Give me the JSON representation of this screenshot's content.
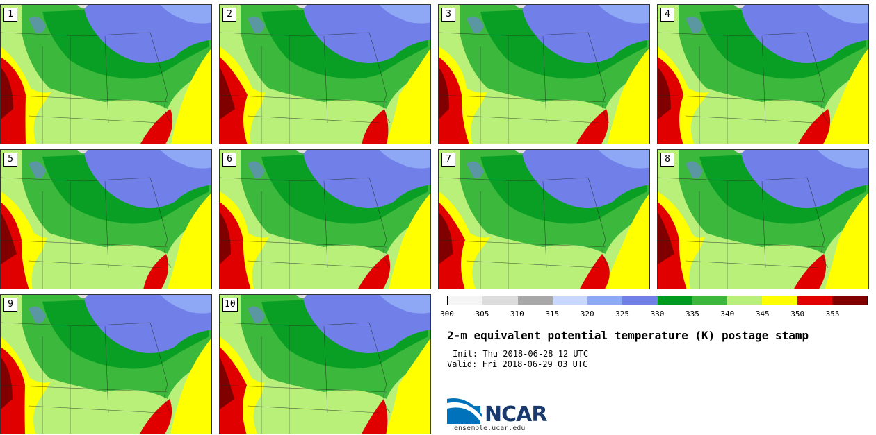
{
  "panels": [
    {
      "label": "1"
    },
    {
      "label": "2"
    },
    {
      "label": "3"
    },
    {
      "label": "4"
    },
    {
      "label": "5"
    },
    {
      "label": "6"
    },
    {
      "label": "7"
    },
    {
      "label": "8"
    },
    {
      "label": "9"
    },
    {
      "label": "10"
    }
  ],
  "colorbar": {
    "colors": [
      "#f5f5f5",
      "#dcdcdc",
      "#a8a8a8",
      "#c8d8ff",
      "#8fa8f5",
      "#7080e8",
      "#009a20",
      "#3cb83c",
      "#b8f07a",
      "#ffff00",
      "#e00000",
      "#800000"
    ],
    "labels": [
      "300",
      "305",
      "310",
      "315",
      "320",
      "325",
      "330",
      "335",
      "340",
      "345",
      "350",
      "355"
    ]
  },
  "title": "2-m equivalent potential temperature (K) postage stamp",
  "init": "Init: Thu 2018-06-28 12 UTC",
  "valid": "Valid: Fri 2018-06-29 03 UTC",
  "logo": {
    "text": "NCAR",
    "site": "ensemble.ucar.edu",
    "brand_color": "#1a3a6e",
    "swoosh_color": "#0072bc"
  }
}
